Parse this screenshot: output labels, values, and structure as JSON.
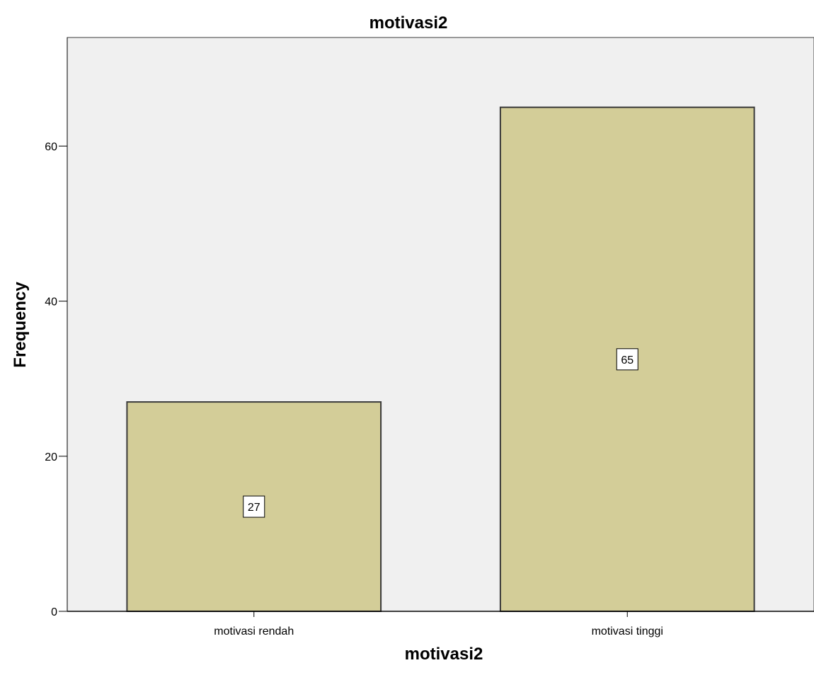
{
  "chart_data": {
    "type": "bar",
    "title": "motivasi2",
    "xlabel": "motivasi2",
    "ylabel": "Frequency",
    "categories": [
      "motivasi rendah",
      "motivasi tinggi"
    ],
    "values": [
      27,
      65
    ],
    "data_labels": [
      "27",
      "65"
    ],
    "yticks": [
      0,
      20,
      40,
      60
    ],
    "ytick_labels": [
      "0",
      "20",
      "40",
      "60"
    ],
    "ylim": [
      0,
      74
    ],
    "grid": false,
    "legend": "none",
    "colors": {
      "bar_fill": "#d3cd98",
      "bar_stroke": "#3a3a3a",
      "plot_background": "#f0f0f0",
      "axis": "#000000",
      "label_box": "#ffffff"
    }
  }
}
